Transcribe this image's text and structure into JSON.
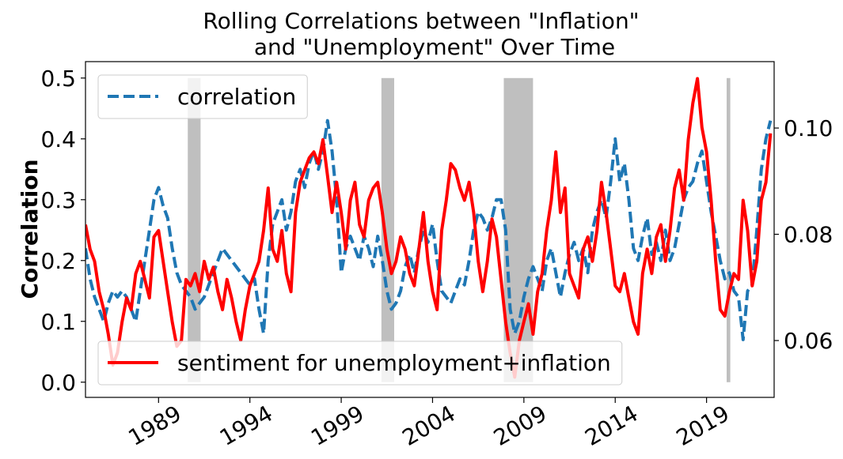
{
  "chart_data": {
    "type": "line",
    "title": [
      "Rolling Correlations between \"Inflation\"",
      "and \"Unemployment\" Over Time"
    ],
    "ylabel": "Correlation",
    "x": [
      1985,
      1985.25,
      1985.5,
      1985.75,
      1986,
      1986.25,
      1986.5,
      1986.75,
      1987,
      1987.25,
      1987.5,
      1987.75,
      1988,
      1988.25,
      1988.5,
      1988.75,
      1989,
      1989.25,
      1989.5,
      1989.75,
      1990,
      1990.25,
      1990.5,
      1990.75,
      1991,
      1991.25,
      1991.5,
      1991.75,
      1992,
      1992.25,
      1992.5,
      1992.75,
      1993,
      1993.25,
      1993.5,
      1993.75,
      1994,
      1994.25,
      1994.5,
      1994.75,
      1995,
      1995.25,
      1995.5,
      1995.75,
      1996,
      1996.25,
      1996.5,
      1996.75,
      1997,
      1997.25,
      1997.5,
      1997.75,
      1998,
      1998.25,
      1998.5,
      1998.75,
      1999,
      1999.25,
      1999.5,
      1999.75,
      2000,
      2000.25,
      2000.5,
      2000.75,
      2001,
      2001.25,
      2001.5,
      2001.75,
      2002,
      2002.25,
      2002.5,
      2002.75,
      2003,
      2003.25,
      2003.5,
      2003.75,
      2004,
      2004.25,
      2004.5,
      2004.75,
      2005,
      2005.25,
      2005.5,
      2005.75,
      2006,
      2006.25,
      2006.5,
      2006.75,
      2007,
      2007.25,
      2007.5,
      2007.75,
      2008,
      2008.25,
      2008.5,
      2008.75,
      2009,
      2009.25,
      2009.5,
      2009.75,
      2010,
      2010.25,
      2010.5,
      2010.75,
      2011,
      2011.25,
      2011.5,
      2011.75,
      2012,
      2012.25,
      2012.5,
      2012.75,
      2013,
      2013.25,
      2013.5,
      2013.75,
      2014,
      2014.25,
      2014.5,
      2014.75,
      2015,
      2015.25,
      2015.5,
      2015.75,
      2016,
      2016.25,
      2016.5,
      2016.75,
      2017,
      2017.25,
      2017.5,
      2017.75,
      2018,
      2018.25,
      2018.5,
      2018.75,
      2019,
      2019.25,
      2019.5,
      2019.75,
      2020,
      2020.25,
      2020.5,
      2020.75,
      2021,
      2021.25,
      2021.5,
      2021.75,
      2022,
      2022.25,
      2022.5
    ],
    "series": [
      {
        "name": "correlation",
        "color": "#1f77b4",
        "linestyle": "dashed",
        "legend": "upper left",
        "values": [
          0.22,
          0.17,
          0.14,
          0.12,
          0.1,
          0.13,
          0.15,
          0.14,
          0.15,
          0.14,
          0.12,
          0.1,
          0.15,
          0.2,
          0.25,
          0.3,
          0.32,
          0.29,
          0.27,
          0.22,
          0.18,
          0.16,
          0.15,
          0.14,
          0.12,
          0.13,
          0.14,
          0.16,
          0.18,
          0.2,
          0.22,
          0.21,
          0.2,
          0.19,
          0.18,
          0.17,
          0.16,
          0.17,
          0.12,
          0.08,
          0.2,
          0.26,
          0.28,
          0.3,
          0.25,
          0.28,
          0.33,
          0.35,
          0.32,
          0.36,
          0.38,
          0.35,
          0.38,
          0.43,
          0.38,
          0.3,
          0.18,
          0.22,
          0.24,
          0.22,
          0.2,
          0.24,
          0.22,
          0.19,
          0.24,
          0.2,
          0.15,
          0.12,
          0.13,
          0.15,
          0.19,
          0.21,
          0.18,
          0.22,
          0.25,
          0.23,
          0.26,
          0.2,
          0.15,
          0.14,
          0.13,
          0.15,
          0.17,
          0.16,
          0.2,
          0.25,
          0.28,
          0.27,
          0.25,
          0.27,
          0.3,
          0.3,
          0.25,
          0.12,
          0.08,
          0.1,
          0.14,
          0.17,
          0.19,
          0.17,
          0.15,
          0.2,
          0.22,
          0.18,
          0.14,
          0.18,
          0.21,
          0.23,
          0.2,
          0.22,
          0.18,
          0.25,
          0.28,
          0.3,
          0.27,
          0.33,
          0.4,
          0.33,
          0.36,
          0.3,
          0.22,
          0.2,
          0.24,
          0.27,
          0.21,
          0.23,
          0.2,
          0.25,
          0.2,
          0.22,
          0.26,
          0.3,
          0.32,
          0.33,
          0.36,
          0.38,
          0.33,
          0.28,
          0.24,
          0.2,
          0.17,
          0.18,
          0.15,
          0.14,
          0.07,
          0.15,
          0.16,
          0.25,
          0.35,
          0.4,
          0.43
        ]
      },
      {
        "name": "sentiment for unemployment+inflation",
        "color": "#ff0000",
        "linestyle": "solid",
        "legend": "lower left",
        "axis": "y2",
        "values": [
          0.0818,
          0.0772,
          0.0749,
          0.0692,
          0.0658,
          0.0612,
          0.0554,
          0.0577,
          0.0635,
          0.068,
          0.0658,
          0.0726,
          0.0749,
          0.0715,
          0.068,
          0.0795,
          0.0807,
          0.0749,
          0.0692,
          0.0635,
          0.0589,
          0.06,
          0.0715,
          0.0703,
          0.0726,
          0.0692,
          0.0749,
          0.0715,
          0.0738,
          0.0692,
          0.0658,
          0.0715,
          0.068,
          0.0635,
          0.06,
          0.0658,
          0.0703,
          0.0726,
          0.0749,
          0.0807,
          0.0887,
          0.0772,
          0.0749,
          0.0807,
          0.0726,
          0.0692,
          0.0841,
          0.0898,
          0.0921,
          0.0944,
          0.0955,
          0.0933,
          0.0978,
          0.091,
          0.0841,
          0.0898,
          0.0841,
          0.0772,
          0.0864,
          0.0898,
          0.0818,
          0.0795,
          0.0864,
          0.0887,
          0.0898,
          0.0841,
          0.0772,
          0.0726,
          0.0749,
          0.0795,
          0.0772,
          0.0726,
          0.0703,
          0.0772,
          0.0841,
          0.0749,
          0.0692,
          0.0658,
          0.0807,
          0.0864,
          0.0933,
          0.0921,
          0.0887,
          0.0864,
          0.0898,
          0.0841,
          0.0749,
          0.0692,
          0.0749,
          0.0829,
          0.0795,
          0.0715,
          0.0635,
          0.0577,
          0.0531,
          0.06,
          0.0635,
          0.0669,
          0.0612,
          0.0692,
          0.0726,
          0.0807,
          0.0864,
          0.0955,
          0.0841,
          0.0887,
          0.0726,
          0.0703,
          0.068,
          0.0772,
          0.0795,
          0.0749,
          0.0807,
          0.0898,
          0.0841,
          0.0772,
          0.0703,
          0.0692,
          0.0726,
          0.068,
          0.0635,
          0.0612,
          0.0726,
          0.0772,
          0.0726,
          0.0795,
          0.0818,
          0.0749,
          0.0807,
          0.0887,
          0.0921,
          0.0864,
          0.0978,
          0.1047,
          0.1093,
          0.1001,
          0.0955,
          0.0864,
          0.0749,
          0.0658,
          0.0646,
          0.0692,
          0.0726,
          0.0715,
          0.0864,
          0.0807,
          0.0703,
          0.0749,
          0.0864,
          0.0898,
          0.099
        ]
      }
    ],
    "shaded_periods": [
      [
        1990.6,
        1991.3
      ],
      [
        2001.2,
        2001.9
      ],
      [
        2007.9,
        2009.5
      ],
      [
        2020.1,
        2020.3
      ]
    ],
    "shade_color": "#bfbfbf",
    "shade_range": [
      0,
      0.5
    ],
    "xlim": [
      1985,
      2022.7
    ],
    "xticks": [
      1989,
      1994,
      1999,
      2004,
      2009,
      2014,
      2019
    ],
    "ylim": [
      -0.025,
      0.527
    ],
    "yticks": [
      {
        "value": 0,
        "label": "0.0"
      },
      0.1,
      0.2,
      0.3,
      0.4,
      0.5
    ],
    "y2lim": [
      0.0493,
      0.1125
    ],
    "y2ticks": [
      0.06,
      0.08,
      {
        "value": 0.1,
        "label": "0.10"
      }
    ]
  }
}
